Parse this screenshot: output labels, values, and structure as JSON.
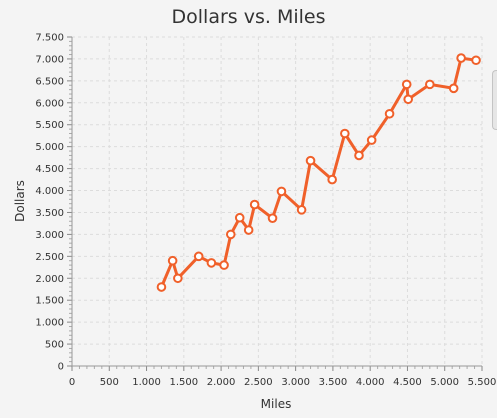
{
  "chart_data": {
    "type": "line",
    "title": "Dollars vs. Miles",
    "xlabel": "Miles",
    "ylabel": "Dollars",
    "xlim": [
      0,
      5500
    ],
    "ylim": [
      0,
      7500
    ],
    "xticks": [
      0,
      500,
      1000,
      1500,
      2000,
      2500,
      3000,
      3500,
      4000,
      4500,
      5000,
      5500
    ],
    "xtick_labels": [
      "0",
      "500",
      "1.000",
      "1.500",
      "2.000",
      "2.500",
      "3.000",
      "3.500",
      "4.000",
      "4.500",
      "5.000",
      "5.500"
    ],
    "yticks": [
      0,
      500,
      1000,
      1500,
      2000,
      2500,
      3000,
      3500,
      4000,
      4500,
      5000,
      5500,
      6000,
      6500,
      7000,
      7500
    ],
    "ytick_labels": [
      "0",
      "500",
      "1.000",
      "1.500",
      "2.000",
      "2.500",
      "3.000",
      "3.500",
      "4.000",
      "4.500",
      "5.000",
      "5.500",
      "6.000",
      "6.500",
      "7.000",
      "7.500"
    ],
    "grid": true,
    "series": [
      {
        "x": [
          1200,
          1350,
          1420,
          1700,
          1870,
          2040,
          2130,
          2250,
          2370,
          2450,
          2690,
          2810,
          3080,
          3200,
          3490,
          3660,
          3850,
          4020,
          4260,
          4490,
          4510,
          4800,
          5120,
          5220,
          5420
        ],
        "y": [
          1800,
          2400,
          2000,
          2500,
          2350,
          2300,
          3000,
          3380,
          3100,
          3680,
          3370,
          3980,
          3560,
          4680,
          4250,
          5300,
          4800,
          5150,
          5750,
          6420,
          6080,
          6420,
          6330,
          7020,
          6970
        ],
        "color": "#f0602a"
      }
    ]
  }
}
